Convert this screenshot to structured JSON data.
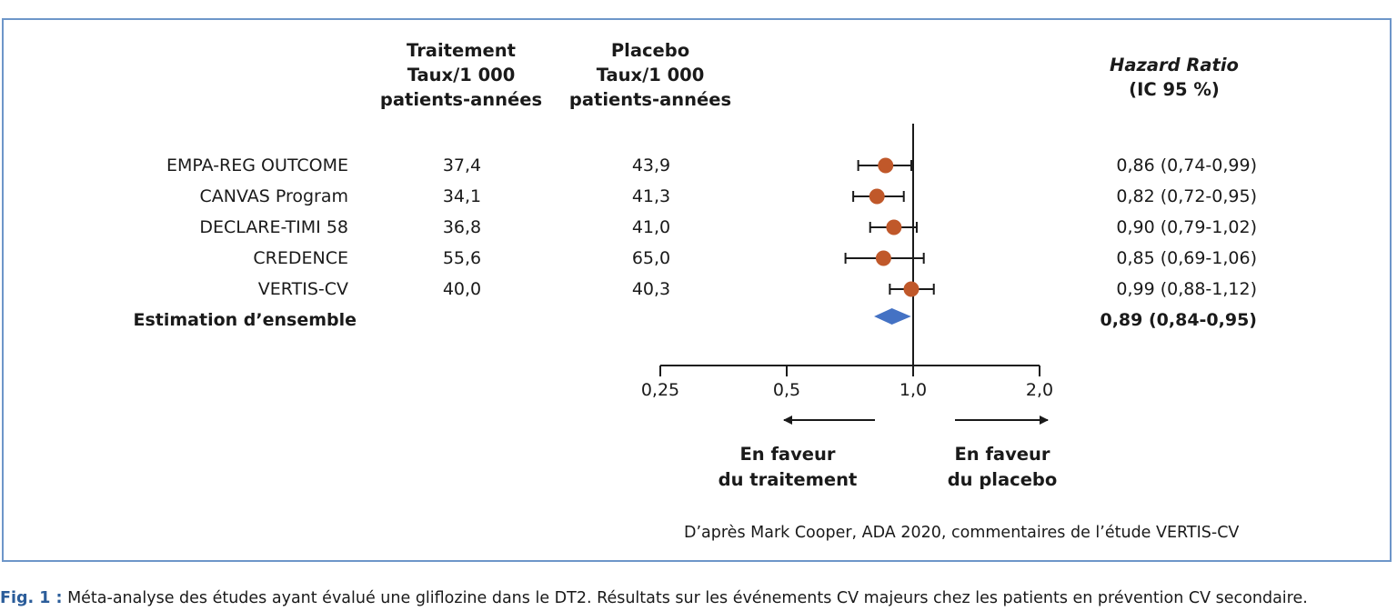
{
  "headers": {
    "treatment": [
      "Traitement",
      "Taux/1 000",
      "patients-années"
    ],
    "placebo": [
      "Placebo",
      "Taux/1 000",
      "patients-années"
    ],
    "hr_title": "Hazard Ratio",
    "hr_ci": "(IC 95 %)"
  },
  "chart_data": {
    "type": "forest",
    "x_scale": "log",
    "reference_line": 1.0,
    "xticks": [
      "0,25",
      "0,5",
      "1,0",
      "2,0"
    ],
    "xtick_values": [
      0.25,
      0.5,
      1.0,
      2.0
    ],
    "rows": [
      {
        "study": "EMPA-REG OUTCOME",
        "treatment_rate": "37,4",
        "placebo_rate": "43,9",
        "hr": 0.86,
        "ci_low": 0.74,
        "ci_high": 0.99,
        "hr_text": "0,86 (0,74-0,99)"
      },
      {
        "study": "CANVAS Program",
        "treatment_rate": "34,1",
        "placebo_rate": "41,3",
        "hr": 0.82,
        "ci_low": 0.72,
        "ci_high": 0.95,
        "hr_text": "0,82 (0,72-0,95)"
      },
      {
        "study": "DECLARE-TIMI 58",
        "treatment_rate": "36,8",
        "placebo_rate": "41,0",
        "hr": 0.9,
        "ci_low": 0.79,
        "ci_high": 1.02,
        "hr_text": "0,90 (0,79-1,02)"
      },
      {
        "study": "CREDENCE",
        "treatment_rate": "55,6",
        "placebo_rate": "65,0",
        "hr": 0.85,
        "ci_low": 0.69,
        "ci_high": 1.06,
        "hr_text": "0,85 (0,69-1,06)"
      },
      {
        "study": "VERTIS-CV",
        "treatment_rate": "40,0",
        "placebo_rate": "40,3",
        "hr": 0.99,
        "ci_low": 0.88,
        "ci_high": 1.12,
        "hr_text": "0,99 (0,88-1,12)"
      }
    ],
    "overall": {
      "label": "Estimation d’ensemble",
      "hr": 0.89,
      "ci_low": 0.84,
      "ci_high": 0.95,
      "hr_text": "0,89 (0,84-0,95)"
    },
    "favor_left": [
      "En faveur",
      "du traitement"
    ],
    "favor_right": [
      "En faveur",
      "du placebo"
    ],
    "colors": {
      "point": "#c0582a",
      "diamond": "#4472c4",
      "frame": "#6d96c9",
      "line": "#1a1a1a"
    }
  },
  "source": "D’après Mark Cooper, ADA 2020, commentaires de l’étude VERTIS-CV",
  "caption": {
    "label": "Fig. 1 :",
    "text": " Méta-analyse des études ayant évalué une gliflozine dans le DT2. Résultats sur les événements CV majeurs chez les patients en prévention CV secondaire."
  }
}
